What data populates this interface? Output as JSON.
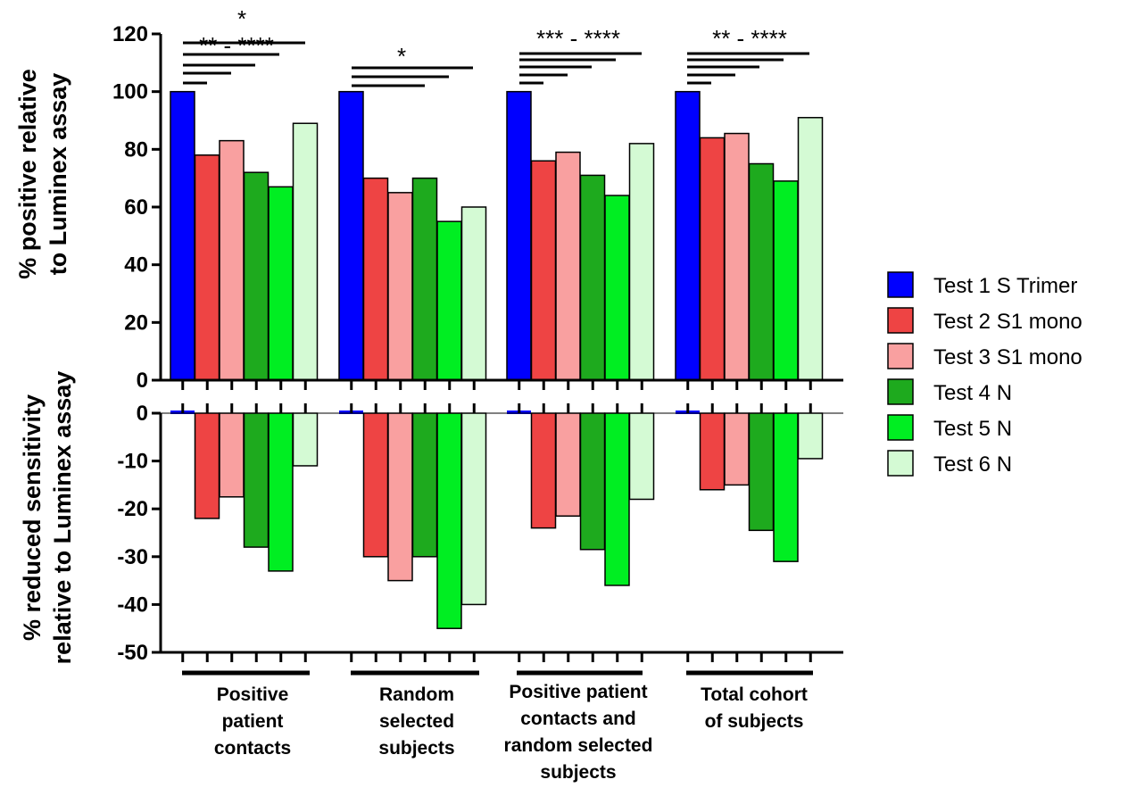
{
  "chart_data": [
    {
      "type": "bar",
      "panel": "top",
      "ylabel_lines": [
        "% positive relative",
        "to Luminex assay"
      ],
      "ylim": [
        0,
        120
      ],
      "yticks": [
        "0",
        "20",
        "40",
        "60",
        "80",
        "100",
        "120"
      ],
      "categories": [
        [
          "Positive",
          "patient",
          "contacts"
        ],
        [
          "Random",
          "selected",
          "subjects"
        ],
        [
          "Positive patient",
          "contacts and",
          "random selected",
          "subjects"
        ],
        [
          "Total cohort",
          "of subjects"
        ]
      ],
      "series": [
        {
          "name": "Test 1 S Trimer",
          "color": "#0000FF",
          "values": [
            100,
            100,
            100,
            100
          ]
        },
        {
          "name": "Test 2 S1 mono",
          "color": "#EE4444",
          "values": [
            78,
            70,
            76,
            84
          ]
        },
        {
          "name": "Test 3 S1 mono",
          "color": "#F9A0A0",
          "values": [
            83,
            65,
            79,
            85.5
          ]
        },
        {
          "name": "Test 4 N",
          "color": "#1EAA1E",
          "values": [
            72,
            70,
            71,
            75
          ]
        },
        {
          "name": "Test 5 N",
          "color": "#00EE22",
          "values": [
            67,
            55,
            64,
            69
          ]
        },
        {
          "name": "Test 6 N",
          "color": "#D4FAD4",
          "values": [
            89,
            60,
            82,
            91
          ]
        }
      ],
      "significance": [
        {
          "group": 0,
          "labels": [
            "*",
            "** - ****"
          ]
        },
        {
          "group": 1,
          "labels": [
            "*"
          ]
        },
        {
          "group": 2,
          "labels": [
            "*** - ****"
          ]
        },
        {
          "group": 3,
          "labels": [
            "** - ****"
          ]
        }
      ]
    },
    {
      "type": "bar",
      "panel": "bottom",
      "ylabel_lines": [
        "% reduced sensitivity",
        "relative to Luminex assay"
      ],
      "ylim": [
        -50,
        0
      ],
      "yticks": [
        "0",
        "-10",
        "-20",
        "-30",
        "-40",
        "-50"
      ],
      "series": [
        {
          "name": "Test 1 S Trimer",
          "values": [
            0,
            0,
            0,
            0
          ]
        },
        {
          "name": "Test 2 S1 mono",
          "values": [
            -22,
            -30,
            -24,
            -16
          ]
        },
        {
          "name": "Test 3 S1 mono",
          "values": [
            -17.5,
            -35,
            -21.5,
            -15
          ]
        },
        {
          "name": "Test 4 N",
          "values": [
            -28,
            -30,
            -28.5,
            -24.5
          ]
        },
        {
          "name": "Test 5 N",
          "values": [
            -33,
            -45,
            -36,
            -31
          ]
        },
        {
          "name": "Test 6 N",
          "values": [
            -11,
            -40,
            -18,
            -9.5
          ]
        }
      ]
    }
  ]
}
